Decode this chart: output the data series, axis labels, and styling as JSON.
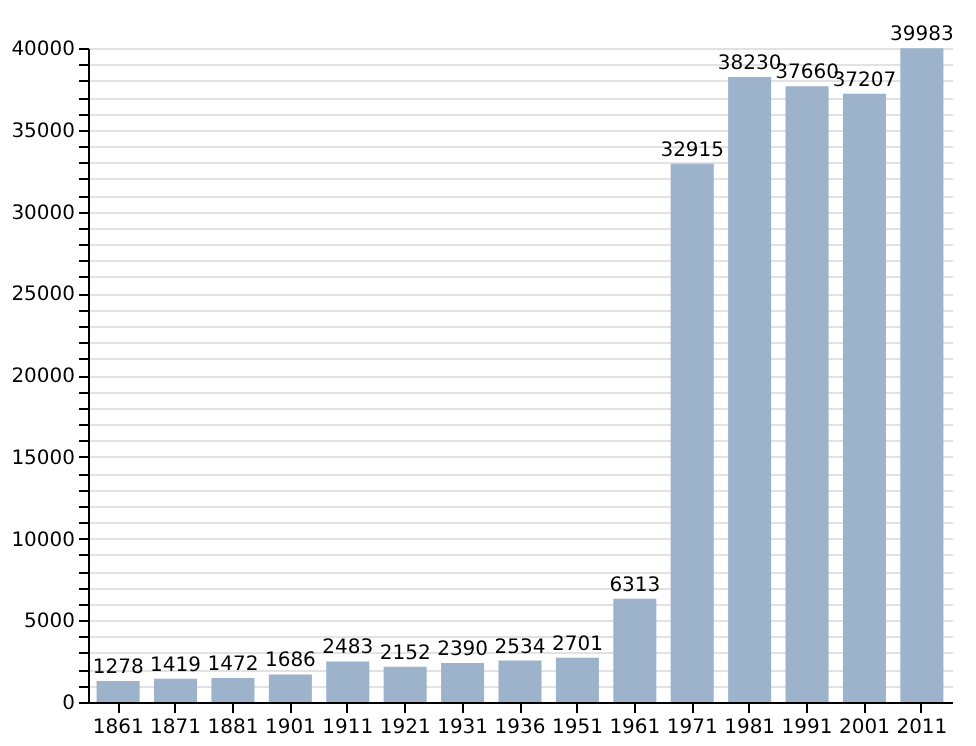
{
  "chart_data": {
    "type": "bar",
    "categories": [
      "1861",
      "1871",
      "1881",
      "1901",
      "1911",
      "1921",
      "1931",
      "1936",
      "1951",
      "1961",
      "1971",
      "1981",
      "1991",
      "2001",
      "2011"
    ],
    "values": [
      1278,
      1419,
      1472,
      1686,
      2483,
      2152,
      2390,
      2534,
      2701,
      6313,
      32915,
      38230,
      37660,
      37207,
      39983
    ],
    "color": "#9db3cc",
    "ylim": [
      0,
      40000
    ],
    "yticks": [
      0,
      {
        "value": 1000,
        "label": null
      },
      {
        "value": 2000,
        "label": null
      },
      {
        "value": 3000,
        "label": null
      },
      {
        "value": 4000,
        "label": null
      },
      5000,
      {
        "value": 6000,
        "label": null
      },
      {
        "value": 7000,
        "label": null
      },
      {
        "value": 8000,
        "label": null
      },
      {
        "value": 9000,
        "label": null
      },
      10000,
      {
        "value": 11000,
        "label": null
      },
      {
        "value": 12000,
        "label": null
      },
      {
        "value": 13000,
        "label": null
      },
      {
        "value": 14000,
        "label": null
      },
      15000,
      {
        "value": 16000,
        "label": null
      },
      {
        "value": 17000,
        "label": null
      },
      {
        "value": 18000,
        "label": null
      },
      {
        "value": 19000,
        "label": null
      },
      20000,
      {
        "value": 21000,
        "label": null
      },
      {
        "value": 22000,
        "label": null
      },
      {
        "value": 23000,
        "label": null
      },
      {
        "value": 24000,
        "label": null
      },
      25000,
      {
        "value": 26000,
        "label": null
      },
      {
        "value": 27000,
        "label": null
      },
      {
        "value": 28000,
        "label": null
      },
      {
        "value": 29000,
        "label": null
      },
      30000,
      {
        "value": 31000,
        "label": null
      },
      {
        "value": 32000,
        "label": null
      },
      {
        "value": 33000,
        "label": null
      },
      {
        "value": 34000,
        "label": null
      },
      35000,
      {
        "value": 36000,
        "label": null
      },
      {
        "value": 37000,
        "label": null
      },
      {
        "value": 38000,
        "label": null
      },
      {
        "value": 39000,
        "label": null
      },
      40000
    ],
    "grid": "y",
    "data_labels": true
  }
}
